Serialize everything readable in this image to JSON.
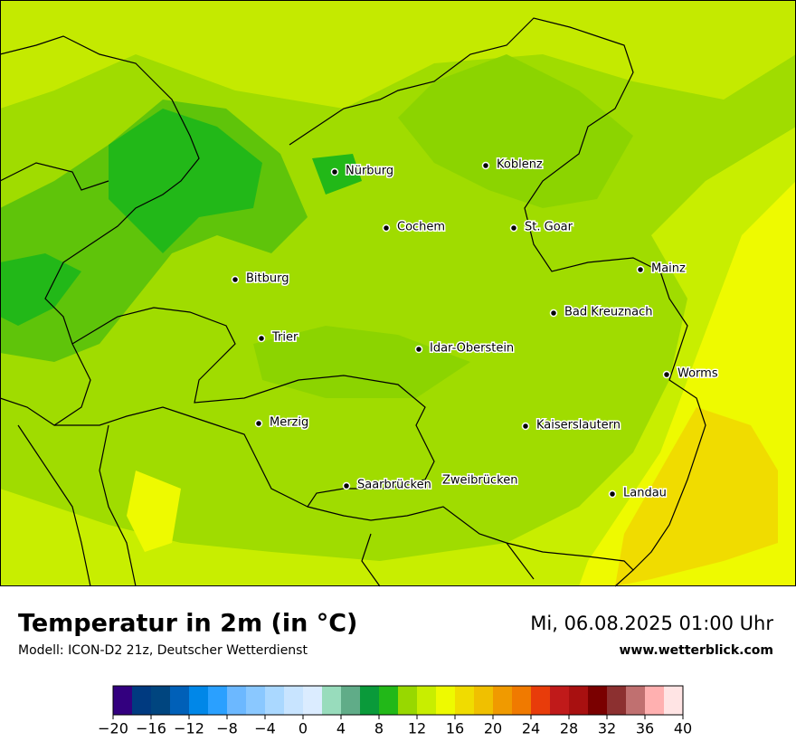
{
  "map": {
    "cities": [
      "Nürburg",
      "Koblenz",
      "Cochem",
      "St. Goar",
      "Mainz",
      "Bitburg",
      "Bad Kreuznach",
      "Trier",
      "Idar-Oberstein",
      "Worms",
      "Merzig",
      "Kaiserslautern",
      "Saarbrücken",
      "Zweibrücken",
      "Landau"
    ]
  },
  "footer": {
    "title": "Temperatur in 2m (in °C)",
    "model": "Modell: ICON-D2 21z, Deutscher Wetterdienst",
    "datetime": "Mi, 06.08.2025 01:00 Uhr",
    "website": "www.wetterblick.com"
  },
  "legend": {
    "lim": [
      -20,
      40
    ],
    "ticks": [
      {
        "value": -20,
        "label": "−20"
      },
      {
        "value": -16,
        "label": "−16"
      },
      {
        "value": -12,
        "label": "−12"
      },
      {
        "value": -8,
        "label": "−8"
      },
      {
        "value": -4,
        "label": "−4"
      },
      0,
      4,
      8,
      12,
      16,
      20,
      24,
      28,
      32,
      36,
      40
    ],
    "colors": [
      "#33007f",
      "#003a80",
      "#00457f",
      "#0060b8",
      "#0087e8",
      "#2aa0ff",
      "#6cb8ff",
      "#8ac8ff",
      "#aad8ff",
      "#c8e4ff",
      "#dbecff",
      "#98dcbc",
      "#60ac88",
      "#0a9a3a",
      "#22b818",
      "#98d800",
      "#c8ee00",
      "#eefa00",
      "#f0dc00",
      "#f0c000",
      "#f09a00",
      "#f07a00",
      "#e83c0a",
      "#c01a1a",
      "#a81010",
      "#7a0000",
      "#8c3030",
      "#c07070",
      "#ffb0b0",
      "#ffe4e4"
    ]
  }
}
